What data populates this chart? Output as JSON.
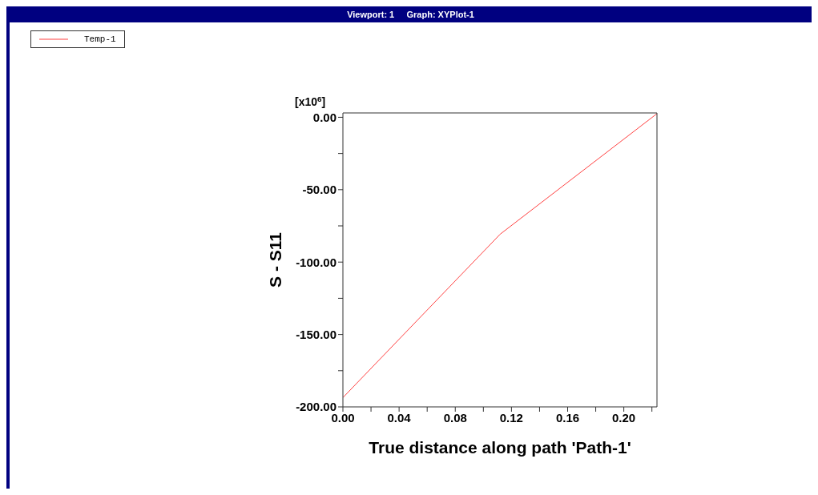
{
  "chart_data": {
    "type": "line",
    "title": "Viewport: 1     Graph: XYPlot-1",
    "xlabel": "True distance along path 'Path-1'",
    "ylabel": "S - S11",
    "annotations": [
      "[x10$^{6}$]"
    ],
    "x": [
      0,
      0.112,
      0.2236
    ],
    "series": [
      {
        "name": "Temp-1",
        "color": "#ff4040",
        "values": [
          -193.6,
          -80.7,
          2.5
        ]
      }
    ],
    "xlim": [
      0,
      0.2236
    ],
    "ylim": [
      -200,
      3
    ],
    "xticks": [
      {
        "value": 0,
        "label": "0.00"
      },
      {
        "value": 0.02,
        "label": null
      },
      {
        "value": 0.04,
        "label": "0.04"
      },
      {
        "value": 0.06,
        "label": null
      },
      {
        "value": 0.08,
        "label": "0.08"
      },
      {
        "value": 0.1,
        "label": null
      },
      {
        "value": 0.12,
        "label": "0.12"
      },
      {
        "value": 0.14,
        "label": null
      },
      {
        "value": 0.16,
        "label": "0.16"
      },
      {
        "value": 0.18,
        "label": null
      },
      {
        "value": 0.2,
        "label": "0.20"
      },
      {
        "value": 0.22,
        "label": null
      }
    ],
    "yticks": [
      {
        "value": -200,
        "label": "-200.00"
      },
      {
        "value": -175,
        "label": null
      },
      {
        "value": -150,
        "label": "-150.00"
      },
      {
        "value": -125,
        "label": null
      },
      {
        "value": -100,
        "label": "-100.00"
      },
      {
        "value": -75,
        "label": null
      },
      {
        "value": -50,
        "label": "-50.00"
      },
      {
        "value": -25,
        "label": null
      },
      {
        "value": 0,
        "label": "0.00"
      }
    ],
    "grid": false,
    "legend": "top left",
    "marker": "none",
    "line_style": "solid"
  }
}
